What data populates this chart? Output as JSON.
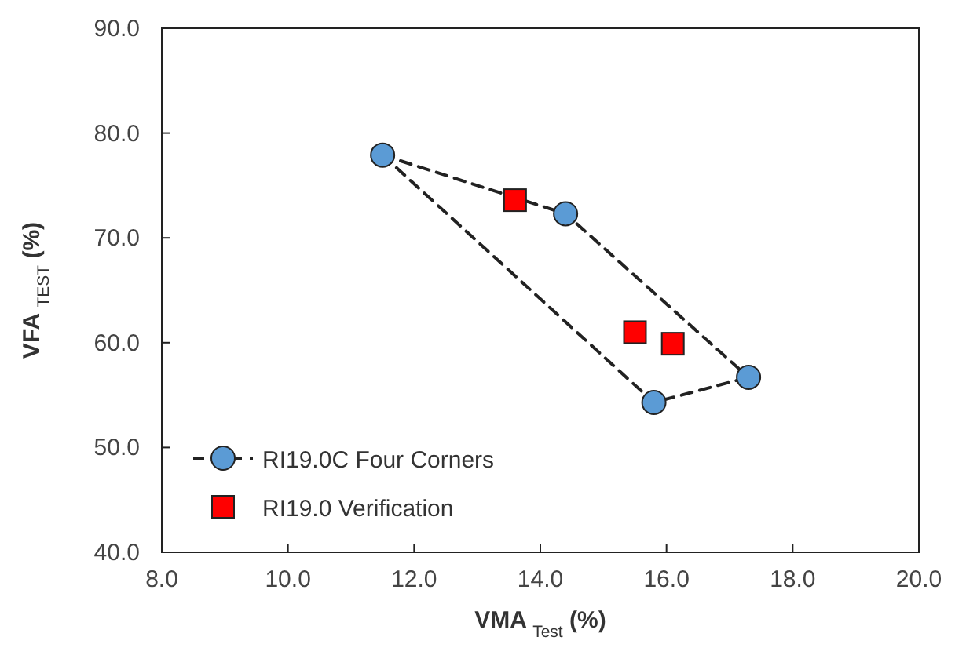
{
  "chart_data": {
    "type": "scatter",
    "xlabel": "VMA $_{Test}$ (%)",
    "ylabel": "VFA $_{TEST}$ (%)",
    "xlim": [
      8,
      20
    ],
    "xticks": [
      {
        "value": 8,
        "label": "8.0"
      },
      {
        "value": 10,
        "label": "10.0"
      },
      {
        "value": 12,
        "label": "12.0"
      },
      {
        "value": 14,
        "label": "14.0"
      },
      {
        "value": 16,
        "label": "16.0"
      },
      {
        "value": 18,
        "label": "18.0"
      },
      {
        "value": 20,
        "label": "20.0"
      }
    ],
    "ylim": [
      40,
      90
    ],
    "yticks": [
      {
        "value": 40,
        "label": "40.0"
      },
      {
        "value": 50,
        "label": "50.0"
      },
      {
        "value": 60,
        "label": "60.0"
      },
      {
        "value": 70,
        "label": "70.0"
      },
      {
        "value": 80,
        "label": "80.0"
      },
      {
        "value": 90,
        "label": "90.0"
      }
    ],
    "grid": false,
    "legend": "bottom left",
    "series": [
      {
        "type": "line",
        "color": "#222222",
        "marker": "none",
        "line_style": "dashed",
        "x": [
          11.5,
          14.4,
          17.3
        ],
        "values": [
          77.9,
          72.3,
          56.7
        ]
      },
      {
        "type": "line",
        "color": "#222222",
        "marker": "none",
        "line_style": "dashed",
        "x": [
          11.5,
          15.8,
          17.3
        ],
        "values": [
          77.9,
          54.3,
          56.7
        ]
      },
      {
        "name": "RI19.0C Four Corners",
        "type": "scatter",
        "color": "#5b9bd5",
        "marker": "circle",
        "x": [
          11.5,
          14.4,
          17.3,
          15.8
        ],
        "values": [
          77.9,
          72.3,
          56.7,
          54.3
        ]
      },
      {
        "name": "RI19.0 Verification",
        "type": "scatter",
        "color": "#ff0000",
        "marker": "square",
        "x": [
          13.6,
          15.5,
          16.1
        ],
        "values": [
          73.6,
          61.0,
          59.9
        ]
      }
    ]
  }
}
